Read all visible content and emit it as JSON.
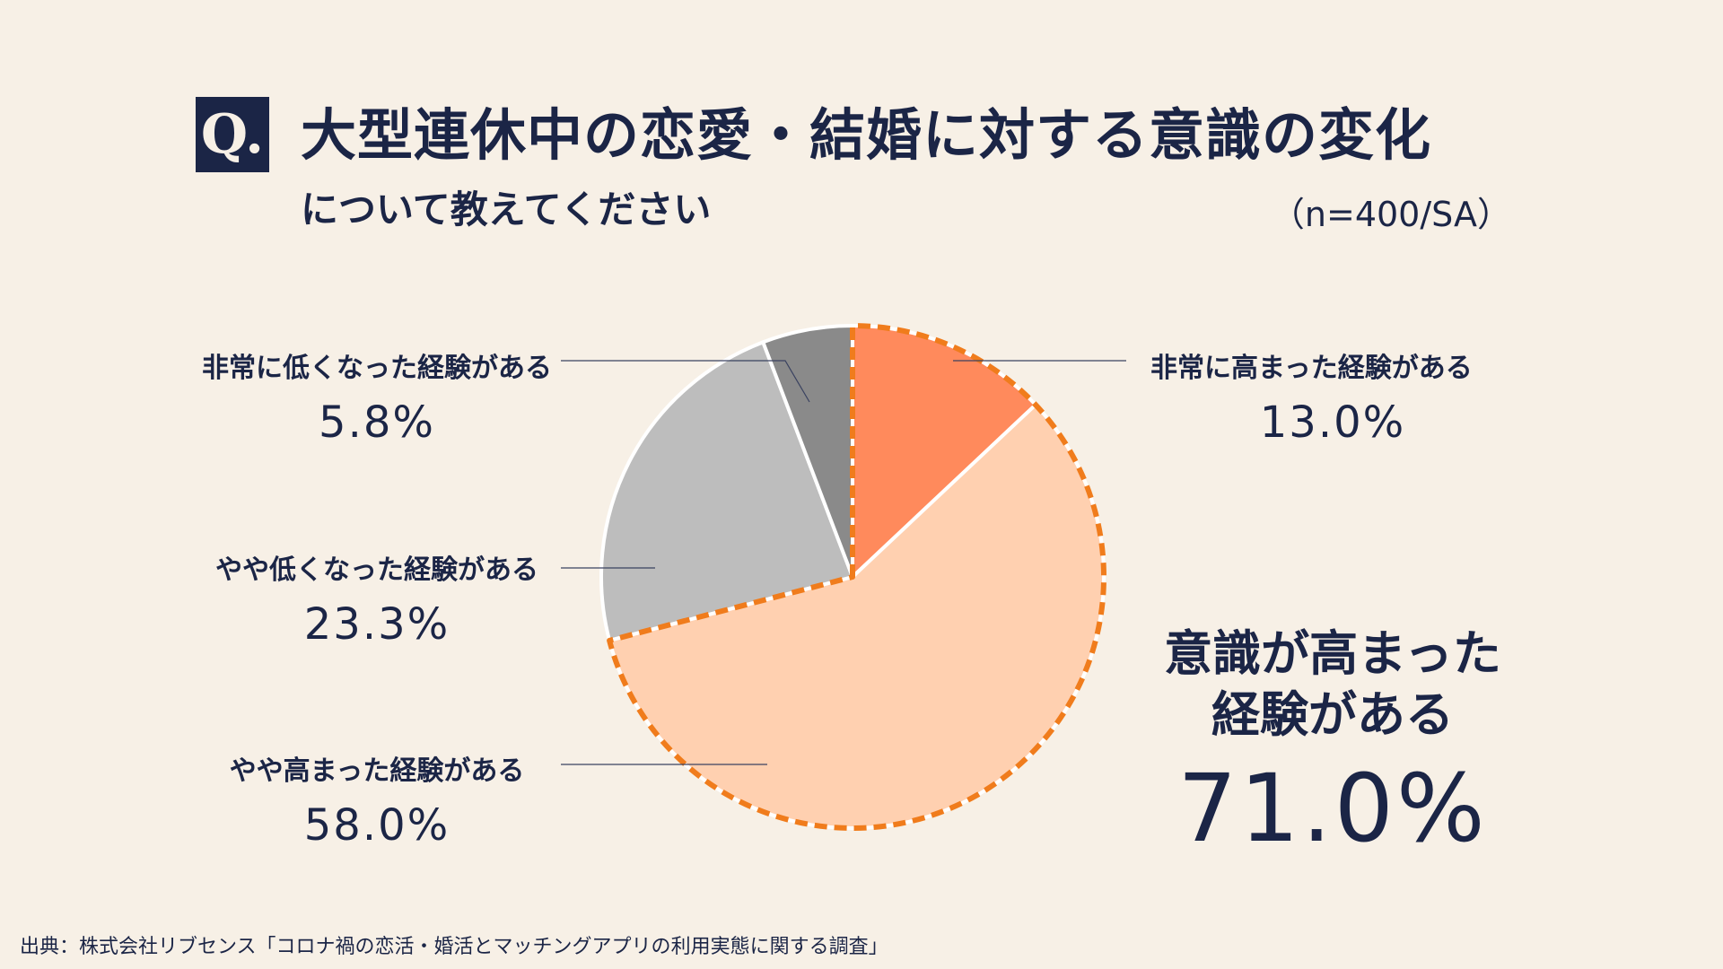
{
  "badge": "Q.",
  "title": "大型連休中の恋愛・結婚に対する意識の変化",
  "subtitle": "について教えてください",
  "meta": "（n=400/SA）",
  "summary": {
    "label_line1": "意識が高まった",
    "label_line2": "経験がある",
    "value": "71.0%"
  },
  "footer": "出典：株式会社リブセンス「コロナ禍の恋活・婚活とマッチングアプリの利用実態に関する調査」",
  "colors": {
    "very_high": "#ff8a5c",
    "somewhat_high": "#ffd0b0",
    "somewhat_low": "#bdbdbd",
    "very_low": "#8a8a8a",
    "highlight": "#f07c1c",
    "text": "#1b2546"
  },
  "chart_data": {
    "type": "pie",
    "title": "大型連休中の恋愛・結婚に対する意識の変化",
    "start": "top",
    "direction": "clockwise",
    "slices": [
      {
        "label": "非常に高まった経験がある",
        "value": 13.0,
        "display": "13.0%"
      },
      {
        "label": "やや高まった経験がある",
        "value": 58.0,
        "display": "58.0%"
      },
      {
        "label": "やや低くなった経験がある",
        "value": 23.3,
        "display": "23.3%"
      },
      {
        "label": "非常に低くなった経験がある",
        "value": 5.8,
        "display": "5.8%"
      }
    ],
    "highlight_group": {
      "slices": [
        0,
        1
      ],
      "label": "意識が高まった経験がある",
      "value": 71.0
    }
  }
}
